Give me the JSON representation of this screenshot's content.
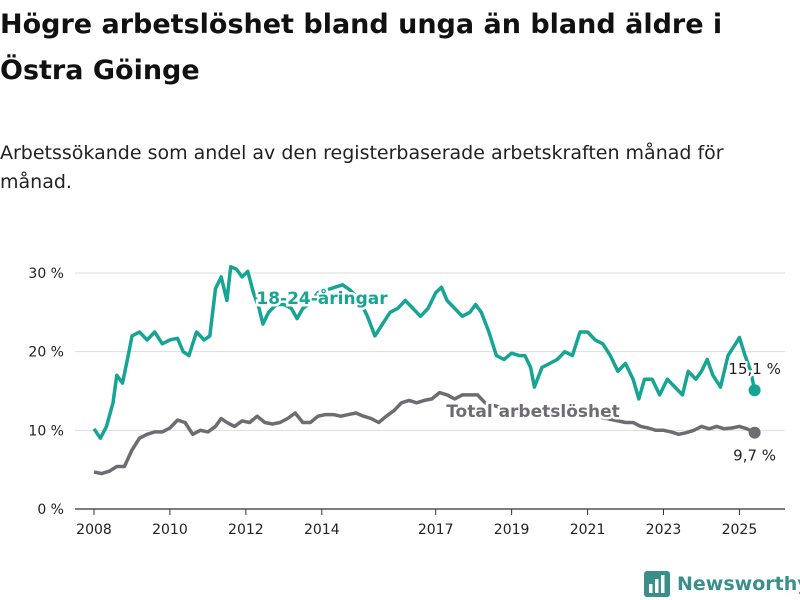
{
  "title": "Högre arbetslöshet bland unga än bland äldre i Östra Göinge",
  "subtitle": "Arbetssökande som andel av den registerbaserade arbetskraften månad för månad.",
  "brand": {
    "name": "Newsworthy",
    "icon": "bar-chart-logo-icon",
    "color": "#3b8f8a"
  },
  "chart_data": {
    "type": "line",
    "ylim": [
      0,
      30
    ],
    "xlim": [
      2007.5,
      2026.2
    ],
    "yticks": [
      {
        "value": 0,
        "label": "0 %"
      },
      {
        "value": 10,
        "label": "10 %"
      },
      {
        "value": 20,
        "label": "20 %"
      },
      {
        "value": 30,
        "label": "30 %"
      }
    ],
    "xticks": [
      {
        "value": 2008,
        "label": "2008"
      },
      {
        "value": 2010,
        "label": "2010"
      },
      {
        "value": 2012,
        "label": "2012"
      },
      {
        "value": 2014,
        "label": "2014"
      },
      {
        "value": 2017,
        "label": "2017"
      },
      {
        "value": 2019,
        "label": "2019"
      },
      {
        "value": 2021,
        "label": "2021"
      },
      {
        "value": 2023,
        "label": "2023"
      },
      {
        "value": 2025,
        "label": "2025"
      }
    ],
    "grid": true,
    "series": [
      {
        "name": "18-24-åringar",
        "color": "#16a594",
        "end_label": "15,1 %",
        "end_value": 15.1,
        "points": [
          [
            2008.0,
            10.2
          ],
          [
            2008.17,
            9.0
          ],
          [
            2008.33,
            10.5
          ],
          [
            2008.5,
            13.5
          ],
          [
            2008.6,
            17.0
          ],
          [
            2008.75,
            16.0
          ],
          [
            2008.9,
            19.5
          ],
          [
            2009.0,
            22.0
          ],
          [
            2009.2,
            22.5
          ],
          [
            2009.4,
            21.5
          ],
          [
            2009.6,
            22.5
          ],
          [
            2009.8,
            21.0
          ],
          [
            2010.0,
            21.5
          ],
          [
            2010.2,
            21.7
          ],
          [
            2010.35,
            20.0
          ],
          [
            2010.5,
            19.5
          ],
          [
            2010.7,
            22.5
          ],
          [
            2010.9,
            21.5
          ],
          [
            2011.05,
            22.0
          ],
          [
            2011.2,
            28.0
          ],
          [
            2011.35,
            29.5
          ],
          [
            2011.5,
            26.5
          ],
          [
            2011.6,
            30.8
          ],
          [
            2011.75,
            30.5
          ],
          [
            2011.9,
            29.5
          ],
          [
            2012.05,
            30.2
          ],
          [
            2012.2,
            27.5
          ],
          [
            2012.35,
            25.5
          ],
          [
            2012.45,
            23.5
          ],
          [
            2012.6,
            25.0
          ],
          [
            2012.8,
            26.0
          ],
          [
            2013.0,
            26.0
          ],
          [
            2013.2,
            25.5
          ],
          [
            2013.35,
            24.2
          ],
          [
            2013.5,
            25.5
          ],
          [
            2013.7,
            26.2
          ],
          [
            2013.9,
            27.5
          ],
          [
            2014.1,
            27.8
          ],
          [
            2014.35,
            28.2
          ],
          [
            2014.55,
            28.5
          ],
          [
            2014.75,
            27.8
          ],
          [
            2015.0,
            26.5
          ],
          [
            2015.2,
            24.5
          ],
          [
            2015.4,
            22.0
          ],
          [
            2015.6,
            23.5
          ],
          [
            2015.8,
            25.0
          ],
          [
            2016.0,
            25.5
          ],
          [
            2016.2,
            26.5
          ],
          [
            2016.4,
            25.5
          ],
          [
            2016.6,
            24.5
          ],
          [
            2016.8,
            25.5
          ],
          [
            2017.0,
            27.5
          ],
          [
            2017.15,
            28.2
          ],
          [
            2017.3,
            26.5
          ],
          [
            2017.5,
            25.5
          ],
          [
            2017.7,
            24.5
          ],
          [
            2017.9,
            25.0
          ],
          [
            2018.05,
            26.0
          ],
          [
            2018.2,
            25.0
          ],
          [
            2018.4,
            22.5
          ],
          [
            2018.6,
            19.5
          ],
          [
            2018.8,
            19.0
          ],
          [
            2019.0,
            19.8
          ],
          [
            2019.2,
            19.5
          ],
          [
            2019.35,
            19.5
          ],
          [
            2019.5,
            18.0
          ],
          [
            2019.6,
            15.5
          ],
          [
            2019.8,
            18.0
          ],
          [
            2020.0,
            18.5
          ],
          [
            2020.2,
            19.0
          ],
          [
            2020.4,
            20.0
          ],
          [
            2020.6,
            19.5
          ],
          [
            2020.8,
            22.5
          ],
          [
            2021.0,
            22.5
          ],
          [
            2021.2,
            21.5
          ],
          [
            2021.4,
            21.0
          ],
          [
            2021.6,
            19.5
          ],
          [
            2021.8,
            17.5
          ],
          [
            2022.0,
            18.5
          ],
          [
            2022.2,
            16.5
          ],
          [
            2022.35,
            14.0
          ],
          [
            2022.5,
            16.5
          ],
          [
            2022.7,
            16.5
          ],
          [
            2022.9,
            14.5
          ],
          [
            2023.1,
            16.5
          ],
          [
            2023.3,
            15.5
          ],
          [
            2023.5,
            14.5
          ],
          [
            2023.65,
            17.5
          ],
          [
            2023.85,
            16.5
          ],
          [
            2024.0,
            17.5
          ],
          [
            2024.15,
            19.0
          ],
          [
            2024.3,
            17.0
          ],
          [
            2024.5,
            15.5
          ],
          [
            2024.7,
            19.5
          ],
          [
            2024.9,
            21.0
          ],
          [
            2025.0,
            21.8
          ],
          [
            2025.15,
            19.5
          ],
          [
            2025.3,
            17.5
          ],
          [
            2025.4,
            15.1
          ]
        ]
      },
      {
        "name": "Total arbetslöshet",
        "color": "#6e6c72",
        "end_label": "9,7 %",
        "end_value": 9.7,
        "points": [
          [
            2008.0,
            4.7
          ],
          [
            2008.2,
            4.5
          ],
          [
            2008.4,
            4.8
          ],
          [
            2008.6,
            5.4
          ],
          [
            2008.8,
            5.4
          ],
          [
            2009.0,
            7.5
          ],
          [
            2009.2,
            9.0
          ],
          [
            2009.4,
            9.5
          ],
          [
            2009.6,
            9.8
          ],
          [
            2009.8,
            9.8
          ],
          [
            2010.0,
            10.3
          ],
          [
            2010.2,
            11.3
          ],
          [
            2010.4,
            11.0
          ],
          [
            2010.6,
            9.5
          ],
          [
            2010.8,
            10.0
          ],
          [
            2011.0,
            9.8
          ],
          [
            2011.2,
            10.5
          ],
          [
            2011.35,
            11.5
          ],
          [
            2011.5,
            11.0
          ],
          [
            2011.7,
            10.5
          ],
          [
            2011.9,
            11.2
          ],
          [
            2012.1,
            11.0
          ],
          [
            2012.3,
            11.8
          ],
          [
            2012.5,
            11.0
          ],
          [
            2012.7,
            10.8
          ],
          [
            2012.9,
            11.0
          ],
          [
            2013.1,
            11.5
          ],
          [
            2013.3,
            12.2
          ],
          [
            2013.5,
            11.0
          ],
          [
            2013.7,
            11.0
          ],
          [
            2013.9,
            11.8
          ],
          [
            2014.1,
            12.0
          ],
          [
            2014.3,
            12.0
          ],
          [
            2014.5,
            11.8
          ],
          [
            2014.7,
            12.0
          ],
          [
            2014.9,
            12.2
          ],
          [
            2015.1,
            11.8
          ],
          [
            2015.3,
            11.5
          ],
          [
            2015.5,
            11.0
          ],
          [
            2015.7,
            11.8
          ],
          [
            2015.9,
            12.5
          ],
          [
            2016.1,
            13.5
          ],
          [
            2016.3,
            13.8
          ],
          [
            2016.5,
            13.5
          ],
          [
            2016.7,
            13.8
          ],
          [
            2016.9,
            14.0
          ],
          [
            2017.1,
            14.8
          ],
          [
            2017.3,
            14.5
          ],
          [
            2017.5,
            14.0
          ],
          [
            2017.7,
            14.5
          ],
          [
            2017.9,
            14.5
          ],
          [
            2018.1,
            14.5
          ],
          [
            2018.3,
            13.5
          ],
          [
            2018.5,
            13.2
          ],
          [
            2019.0,
            12.5
          ],
          [
            2019.5,
            12.0
          ],
          [
            2020.0,
            12.0
          ],
          [
            2020.5,
            12.2
          ],
          [
            2021.0,
            12.0
          ],
          [
            2021.5,
            11.5
          ],
          [
            2022.0,
            11.0
          ],
          [
            2022.2,
            11.0
          ],
          [
            2022.4,
            10.5
          ],
          [
            2022.6,
            10.3
          ],
          [
            2022.8,
            10.0
          ],
          [
            2023.0,
            10.0
          ],
          [
            2023.2,
            9.8
          ],
          [
            2023.4,
            9.5
          ],
          [
            2023.6,
            9.7
          ],
          [
            2023.8,
            10.0
          ],
          [
            2024.0,
            10.5
          ],
          [
            2024.2,
            10.2
          ],
          [
            2024.4,
            10.5
          ],
          [
            2024.6,
            10.2
          ],
          [
            2024.8,
            10.3
          ],
          [
            2025.0,
            10.5
          ],
          [
            2025.2,
            10.2
          ],
          [
            2025.4,
            9.7
          ]
        ]
      }
    ]
  }
}
